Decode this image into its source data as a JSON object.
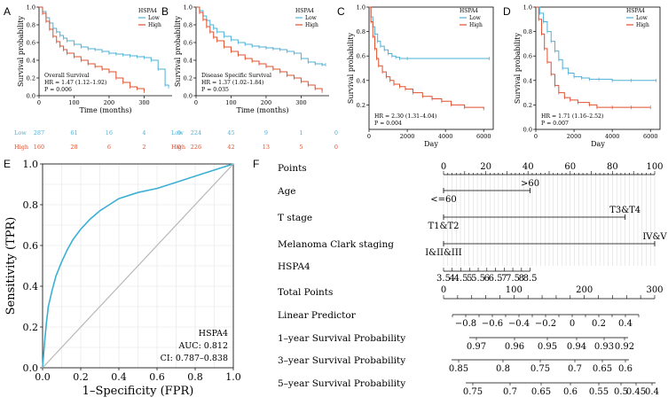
{
  "colors": {
    "low": "#4fb0d6",
    "high": "#e0502e",
    "roc": "#3bb0d4",
    "diag": "#b8b8b8",
    "axis": "#000000"
  },
  "chart_data": [
    {
      "id": "A",
      "type": "line",
      "title": "",
      "xlabel": "Time (months)",
      "ylabel": "Survival probability",
      "xlim": [
        0,
        380
      ],
      "ylim": [
        0,
        1
      ],
      "xticks": [
        0,
        100,
        200,
        300
      ],
      "yticks": [
        0.0,
        0.2,
        0.4,
        0.6,
        0.8,
        1.0
      ],
      "legend": {
        "title": "HSPA4",
        "entries": [
          "Low",
          "High"
        ],
        "position": "top-right"
      },
      "annotation": [
        "Overall Survival",
        "HR = 1.47 (1.12–1.92)",
        "P = 0.006"
      ],
      "risk_table": {
        "rows": [
          {
            "label": "Low",
            "values": [
              "287",
              "61",
              "16",
              "4",
              "0"
            ]
          },
          {
            "label": "High",
            "values": [
              "160",
              "28",
              "6",
              "2",
              "0"
            ]
          }
        ]
      },
      "series": [
        {
          "name": "Low",
          "x": [
            0,
            10,
            20,
            30,
            40,
            50,
            60,
            70,
            80,
            100,
            120,
            140,
            160,
            180,
            200,
            220,
            240,
            260,
            280,
            300,
            320,
            340,
            360,
            370
          ],
          "y": [
            1.0,
            0.95,
            0.88,
            0.82,
            0.76,
            0.72,
            0.68,
            0.65,
            0.62,
            0.58,
            0.55,
            0.53,
            0.52,
            0.5,
            0.48,
            0.47,
            0.46,
            0.45,
            0.44,
            0.43,
            0.4,
            0.3,
            0.12,
            0.1
          ]
        },
        {
          "name": "High",
          "x": [
            0,
            10,
            20,
            30,
            40,
            50,
            60,
            70,
            80,
            100,
            120,
            140,
            160,
            180,
            200,
            220,
            240,
            260,
            280,
            300
          ],
          "y": [
            1.0,
            0.93,
            0.84,
            0.75,
            0.67,
            0.61,
            0.56,
            0.52,
            0.48,
            0.44,
            0.4,
            0.36,
            0.33,
            0.3,
            0.27,
            0.2,
            0.15,
            0.1,
            0.08,
            0.05
          ]
        }
      ]
    },
    {
      "id": "B",
      "type": "line",
      "title": "",
      "xlabel": "Time (months)",
      "ylabel": "Survival probability",
      "xlim": [
        0,
        380
      ],
      "ylim": [
        0,
        1
      ],
      "xticks": [
        0,
        100,
        200,
        300
      ],
      "yticks": [
        0.0,
        0.2,
        0.4,
        0.6,
        0.8,
        1.0
      ],
      "legend": {
        "title": "HSPA4",
        "entries": [
          "Low",
          "High"
        ],
        "position": "top-right"
      },
      "annotation": [
        "Disease Specific Survival",
        "HR = 1.37 (1.02–1.84)",
        "P = 0.035"
      ],
      "risk_table": {
        "rows": [
          {
            "label": "Low",
            "values": [
              "224",
              "45",
              "9",
              "1",
              "0"
            ]
          },
          {
            "label": "High",
            "values": [
              "226",
              "42",
              "13",
              "5",
              "0"
            ]
          }
        ]
      },
      "series": [
        {
          "name": "Low",
          "x": [
            0,
            10,
            20,
            30,
            40,
            50,
            60,
            80,
            100,
            120,
            140,
            160,
            180,
            200,
            220,
            240,
            260,
            280,
            300,
            320,
            340,
            360,
            370
          ],
          "y": [
            1.0,
            0.96,
            0.9,
            0.85,
            0.8,
            0.76,
            0.72,
            0.67,
            0.63,
            0.6,
            0.58,
            0.56,
            0.55,
            0.54,
            0.53,
            0.52,
            0.5,
            0.48,
            0.42,
            0.38,
            0.36,
            0.35,
            0.35
          ]
        },
        {
          "name": "High",
          "x": [
            0,
            10,
            20,
            30,
            40,
            50,
            60,
            80,
            100,
            120,
            140,
            160,
            180,
            200,
            220,
            240,
            260,
            280,
            300,
            320,
            340,
            360
          ],
          "y": [
            1.0,
            0.94,
            0.86,
            0.78,
            0.72,
            0.66,
            0.62,
            0.55,
            0.5,
            0.46,
            0.42,
            0.39,
            0.36,
            0.33,
            0.3,
            0.27,
            0.23,
            0.2,
            0.16,
            0.12,
            0.08,
            0.05
          ]
        }
      ]
    },
    {
      "id": "C",
      "type": "line",
      "title": "",
      "xlabel": "Day",
      "ylabel": "Survival probability",
      "xlim": [
        0,
        6500
      ],
      "ylim": [
        0,
        1
      ],
      "xticks": [
        0,
        2000,
        4000,
        6000
      ],
      "yticks": [
        0.2,
        0.4,
        0.6,
        0.8,
        1.0
      ],
      "legend": {
        "title": "HSPA4",
        "entries": [
          "Low",
          "High"
        ],
        "position": "top-right"
      },
      "annotation": [
        "HR = 2.30 (1.31–4.04)",
        "P = 0.004"
      ],
      "series": [
        {
          "name": "Low",
          "x": [
            0,
            100,
            200,
            300,
            450,
            600,
            800,
            1000,
            1200,
            1400,
            1600,
            2000,
            6300
          ],
          "y": [
            1.0,
            0.92,
            0.84,
            0.78,
            0.72,
            0.68,
            0.65,
            0.62,
            0.6,
            0.59,
            0.58,
            0.58,
            0.58
          ]
        },
        {
          "name": "High",
          "x": [
            0,
            100,
            200,
            300,
            400,
            500,
            700,
            900,
            1100,
            1300,
            1600,
            1900,
            2300,
            2800,
            3300,
            3800,
            4300,
            5000,
            6000
          ],
          "y": [
            1.0,
            0.88,
            0.76,
            0.66,
            0.58,
            0.52,
            0.47,
            0.43,
            0.4,
            0.37,
            0.35,
            0.33,
            0.3,
            0.27,
            0.25,
            0.23,
            0.2,
            0.18,
            0.17
          ]
        }
      ]
    },
    {
      "id": "D",
      "type": "line",
      "title": "",
      "xlabel": "Day",
      "ylabel": "Survival probability",
      "xlim": [
        0,
        6500
      ],
      "ylim": [
        0,
        1
      ],
      "xticks": [
        0,
        2000,
        4000,
        6000
      ],
      "yticks": [
        0.0,
        0.2,
        0.4,
        0.6,
        0.8,
        1.0
      ],
      "legend": {
        "title": "HSPA4",
        "entries": [
          "Low",
          "High"
        ],
        "position": "top-right"
      },
      "annotation": [
        "HR = 1.71 (1.16–2.52)",
        "P = 0.007"
      ],
      "series": [
        {
          "name": "Low",
          "x": [
            0,
            200,
            400,
            600,
            800,
            1000,
            1200,
            1400,
            1700,
            2000,
            2400,
            2800,
            3300,
            4000,
            5000,
            6300
          ],
          "y": [
            1.0,
            0.95,
            0.88,
            0.8,
            0.72,
            0.64,
            0.57,
            0.5,
            0.46,
            0.43,
            0.42,
            0.41,
            0.41,
            0.4,
            0.4,
            0.4
          ]
        },
        {
          "name": "High",
          "x": [
            0,
            150,
            300,
            450,
            600,
            800,
            1000,
            1200,
            1500,
            1800,
            2200,
            2800,
            3200,
            4000,
            5000,
            6000
          ],
          "y": [
            1.0,
            0.9,
            0.78,
            0.66,
            0.55,
            0.45,
            0.36,
            0.3,
            0.26,
            0.24,
            0.22,
            0.2,
            0.18,
            0.18,
            0.18,
            0.18
          ]
        }
      ]
    },
    {
      "id": "E",
      "type": "line",
      "title": "",
      "xlabel": "1–Specificity (FPR)",
      "ylabel": "Sensitivity (TPR)",
      "xlim": [
        0,
        1
      ],
      "ylim": [
        0,
        1
      ],
      "xticks": [
        0.0,
        0.2,
        0.4,
        0.6,
        0.8,
        1.0
      ],
      "yticks": [
        0.0,
        0.2,
        0.4,
        0.6,
        0.8,
        1.0
      ],
      "grid": true,
      "annotation": [
        "HSPA4",
        "AUC: 0.812",
        "CI: 0.787–0.838"
      ],
      "series": [
        {
          "name": "ROC",
          "x": [
            0,
            0.01,
            0.02,
            0.03,
            0.05,
            0.07,
            0.1,
            0.13,
            0.16,
            0.2,
            0.25,
            0.3,
            0.35,
            0.4,
            0.5,
            0.6,
            0.7,
            0.8,
            0.9,
            1.0
          ],
          "y": [
            0,
            0.12,
            0.22,
            0.3,
            0.38,
            0.45,
            0.52,
            0.58,
            0.63,
            0.68,
            0.73,
            0.77,
            0.8,
            0.83,
            0.86,
            0.88,
            0.91,
            0.94,
            0.97,
            1.0
          ]
        },
        {
          "name": "Reference",
          "x": [
            0,
            1
          ],
          "y": [
            0,
            1
          ]
        }
      ]
    },
    {
      "id": "F",
      "type": "table",
      "title": "Nomogram",
      "rows": [
        {
          "label": "Points",
          "scale": [
            0,
            100
          ],
          "ticks": [
            0,
            20,
            40,
            60,
            80,
            100
          ],
          "labels": [
            "0",
            "20",
            "40",
            "60",
            "80",
            "100"
          ],
          "minor": 10
        },
        {
          "label": "Age",
          "categories": [
            {
              "text": ">60",
              "points": 41,
              "side": "above"
            },
            {
              "text": "<=60",
              "points": 0,
              "side": "below"
            }
          ]
        },
        {
          "label": "T stage",
          "categories": [
            {
              "text": "T3&T4",
              "points": 86,
              "side": "above"
            },
            {
              "text": "T1&T2",
              "points": 0,
              "side": "below"
            }
          ]
        },
        {
          "label": "Melanoma Clark staging",
          "categories": [
            {
              "text": "IV&V",
              "points": 100,
              "side": "above"
            },
            {
              "text": "I&II&III",
              "points": 0,
              "side": "below"
            }
          ]
        },
        {
          "label": "HSPA4",
          "scale": [
            3.5,
            8.5
          ],
          "ticks": [
            3.5,
            4.0,
            4.5,
            5.0,
            5.5,
            6.0,
            6.5,
            7.0,
            7.5,
            8.0,
            8.5
          ],
          "labels": [
            "3.5",
            "4",
            "4.5",
            "5",
            "5.5",
            "6",
            "6.5",
            "7",
            "7.5",
            "8",
            "8.5"
          ],
          "points_range": [
            0,
            41
          ]
        },
        {
          "label": "Total Points",
          "scale": [
            0,
            300
          ],
          "ticks": [
            0,
            100,
            200,
            300
          ],
          "labels": [
            "0",
            "100",
            "200",
            "300"
          ],
          "minor": 20
        },
        {
          "label": "Linear Predictor",
          "ticks": [
            -0.8,
            -0.6,
            -0.4,
            -0.2,
            0,
            0.2,
            0.4
          ],
          "labels": [
            "−0.8",
            "−0.6",
            "−0.4",
            "−0.2",
            "0",
            "0.2",
            "0.4"
          ],
          "range": [
            -0.9,
            0.5
          ]
        },
        {
          "label": "1–year Survival Probability",
          "ticks": [
            0.97,
            0.96,
            0.95,
            0.94,
            0.93,
            0.92
          ],
          "labels": [
            "0.97",
            "0.96",
            "0.95",
            "0.94",
            "0.93",
            "0.92"
          ]
        },
        {
          "label": "3–year Survival Probability",
          "ticks": [
            0.85,
            0.8,
            0.75,
            0.7,
            0.65,
            0.6
          ],
          "labels": [
            "0.85",
            "0.8",
            "0.75",
            "0.7",
            "0.65",
            "0.6"
          ]
        },
        {
          "label": "5–year Survival Probability",
          "ticks": [
            0.75,
            0.7,
            0.65,
            0.6,
            0.55,
            0.5,
            0.45,
            0.4
          ],
          "labels": [
            "0.75",
            "0.7",
            "0.65",
            "0.6",
            "0.55",
            "0.5",
            "0.45",
            "0.4"
          ]
        }
      ]
    }
  ]
}
